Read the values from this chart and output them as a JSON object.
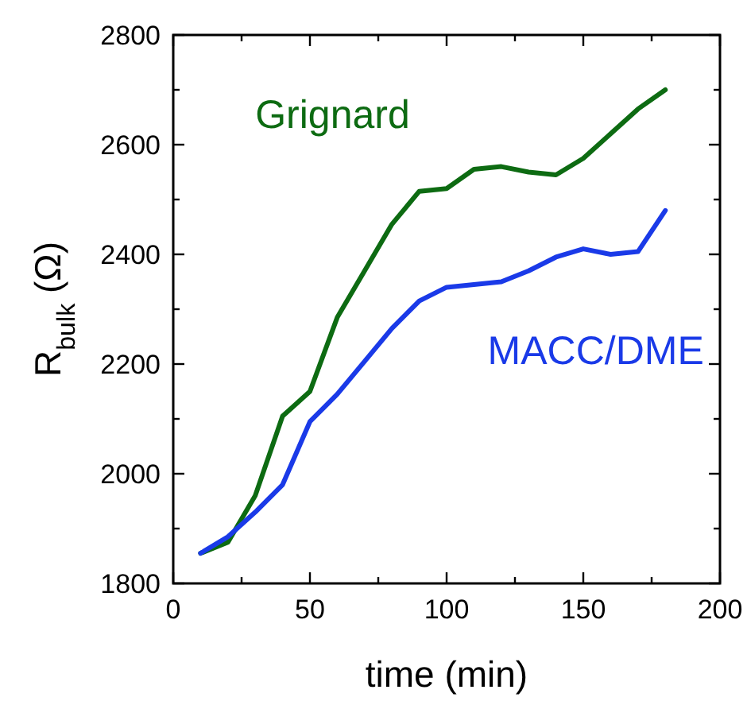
{
  "chart_data": {
    "type": "line",
    "xlabel": "time (min)",
    "ylabel": "R$_{bulk}$ (Ω)",
    "x": [
      10,
      20,
      30,
      40,
      50,
      60,
      70,
      80,
      90,
      100,
      110,
      120,
      130,
      140,
      150,
      160,
      170,
      180
    ],
    "series": [
      {
        "name": "Grignard",
        "color": "#0d6b12",
        "values": [
          1855,
          1875,
          1960,
          2105,
          2150,
          2285,
          2370,
          2455,
          2515,
          2520,
          2555,
          2560,
          2550,
          2545,
          2575,
          2620,
          2665,
          2700
        ]
      },
      {
        "name": "MACC/DME",
        "color": "#1a3ae8",
        "values": [
          1855,
          1885,
          1930,
          1980,
          2095,
          2145,
          2205,
          2265,
          2315,
          2340,
          2345,
          2350,
          2370,
          2395,
          2410,
          2400,
          2405,
          2480
        ]
      }
    ],
    "xlim": [
      0,
      200
    ],
    "xticks": [
      0,
      {
        "value": 25,
        "label": null
      },
      50,
      {
        "value": 75,
        "label": null
      },
      100,
      {
        "value": 125,
        "label": null
      },
      150,
      {
        "value": 175,
        "label": null
      },
      200
    ],
    "ylim": [
      1800,
      2800
    ],
    "yticks": [
      1800,
      {
        "value": 1900,
        "label": null
      },
      2000,
      {
        "value": 2100,
        "label": null
      },
      2200,
      {
        "value": 2300,
        "label": null
      },
      2400,
      {
        "value": 2500,
        "label": null
      },
      2600,
      {
        "value": 2700,
        "label": null
      },
      2800
    ],
    "grid": false,
    "marker": "none",
    "line_style": "solid"
  }
}
